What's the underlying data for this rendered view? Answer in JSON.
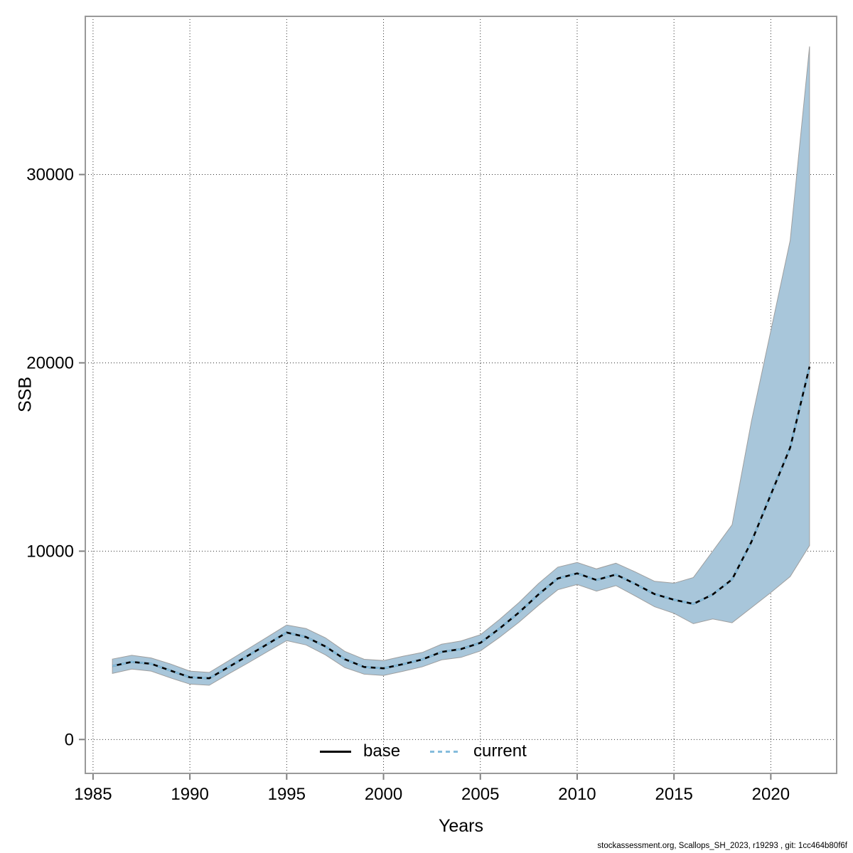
{
  "figure": {
    "footer": "stockassessment.org, Scallops_SH_2023, r19293 , git: 1cc464b80f6f"
  },
  "legend": {
    "items": [
      {
        "label": "base",
        "line_style": "solid",
        "color": "#000000"
      },
      {
        "label": "current",
        "line_style": "dashed",
        "color": "#85bcdc"
      }
    ]
  },
  "axes": {
    "xlabel": "Years",
    "ylabel": "SSB"
  },
  "colors": {
    "background": "#ffffff",
    "plot_border": "#999999",
    "grid": "#333333",
    "tick": "#808080",
    "band_fill": "#a8c6da",
    "band_edge": "#9e9e9e",
    "base_line": "#000000",
    "current_line": "#85bcdc",
    "text": "#000000"
  },
  "chart_data": {
    "type": "line",
    "title": "",
    "xlabel": "Years",
    "ylabel": "SSB",
    "xlim": [
      1984.6,
      2023.4
    ],
    "ylim": [
      -1800,
      38400
    ],
    "xticks": [
      1985,
      1990,
      1995,
      2000,
      2005,
      2010,
      2015,
      2020
    ],
    "yticks": [
      0,
      10000,
      20000,
      30000
    ],
    "grid": "dotted, at all axis ticks",
    "legend_position": "bottom center inside plot",
    "years": [
      1986,
      1987,
      1988,
      1989,
      1990,
      1991,
      1992,
      1993,
      1994,
      1995,
      1996,
      1997,
      1998,
      1999,
      2000,
      2001,
      2002,
      2003,
      2004,
      2005,
      2006,
      2007,
      2008,
      2009,
      2010,
      2011,
      2012,
      2013,
      2014,
      2015,
      2016,
      2017,
      2018,
      2019,
      2020,
      2021,
      2022
    ],
    "series": [
      {
        "name": "base",
        "style": "solid",
        "color": "#000000",
        "values": [
          3900,
          4120,
          4020,
          3660,
          3300,
          3250,
          3850,
          4450,
          5060,
          5680,
          5440,
          4940,
          4260,
          3850,
          3780,
          4000,
          4250,
          4650,
          4800,
          5130,
          5900,
          6750,
          7700,
          8550,
          8820,
          8470,
          8760,
          8260,
          7720,
          7420,
          7200,
          7700,
          8500,
          10500,
          13000,
          15500,
          19800
        ]
      },
      {
        "name": "current",
        "style": "dashed",
        "color": "#85bcdc",
        "values": [
          3900,
          4120,
          4020,
          3660,
          3300,
          3250,
          3850,
          4450,
          5060,
          5680,
          5440,
          4940,
          4260,
          3850,
          3780,
          4000,
          4250,
          4650,
          4800,
          5130,
          5900,
          6750,
          7700,
          8550,
          8820,
          8470,
          8760,
          8260,
          7720,
          7420,
          7200,
          7700,
          8500,
          10500,
          13000,
          15500,
          19800
        ]
      }
    ],
    "band": {
      "name": "current-confidence-band",
      "color": "#a8c6da",
      "lower": [
        3510,
        3740,
        3630,
        3270,
        2940,
        2880,
        3480,
        4060,
        4660,
        5250,
        5020,
        4490,
        3820,
        3470,
        3400,
        3620,
        3860,
        4230,
        4360,
        4700,
        5430,
        6230,
        7120,
        7950,
        8230,
        7880,
        8170,
        7620,
        7050,
        6700,
        6150,
        6400,
        6200,
        7000,
        7800,
        8650,
        10300
      ],
      "upper": [
        4270,
        4470,
        4330,
        4010,
        3630,
        3560,
        4180,
        4810,
        5440,
        6080,
        5890,
        5400,
        4680,
        4260,
        4190,
        4420,
        4620,
        5060,
        5230,
        5560,
        6380,
        7280,
        8280,
        9150,
        9400,
        9060,
        9360,
        8900,
        8400,
        8300,
        8600,
        10000,
        11400,
        16900,
        21700,
        26500,
        36800
      ]
    }
  }
}
